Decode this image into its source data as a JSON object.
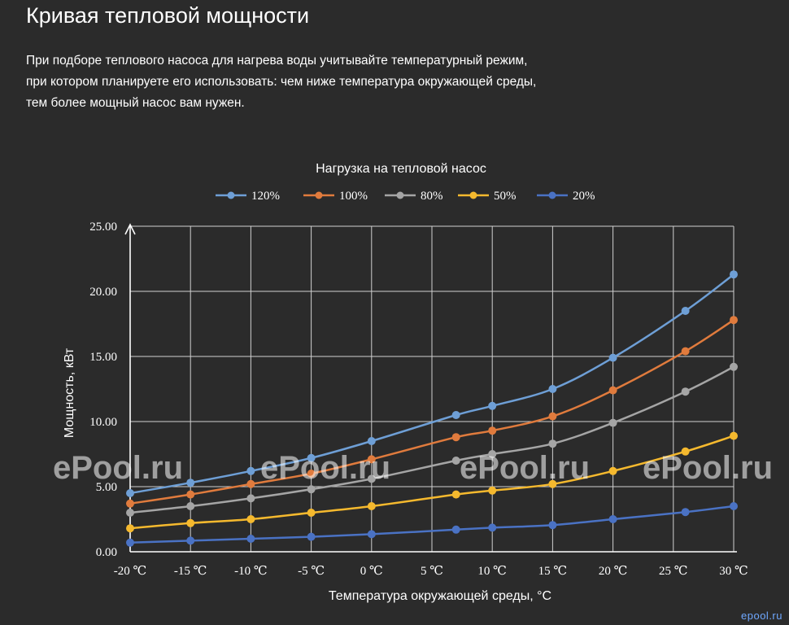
{
  "page": {
    "title": "Кривая тепловой мощности",
    "description": [
      "При подборе теплового насоса для нагрева воды учитывайте температурный режим,",
      "при котором планируете его использовать: чем ниже температура окружающей среды,",
      "тем более мощный насос вам нужен."
    ],
    "corner_mark": "epool.ru"
  },
  "watermark": {
    "text": "ePool.ru",
    "repeat": 4
  },
  "chart_data": {
    "type": "line",
    "title": "Нагрузка на тепловой насос",
    "xlabel": "Температура окружающей среды, °С",
    "ylabel": "Мощность, кВт",
    "x": [
      -20,
      -15,
      -10,
      -5,
      0,
      5,
      10,
      15,
      20,
      25,
      30
    ],
    "xtick_labels": [
      "-20 ℃",
      "-15 ℃",
      "-10 ℃",
      "-5 ℃",
      "0 ℃",
      "5 ℃",
      "10 ℃",
      "15 ℃",
      "20 ℃",
      "25 ℃",
      "30 ℃"
    ],
    "ylim": [
      0,
      25
    ],
    "ytick_labels": [
      "0.00",
      "5.00",
      "10.00",
      "15.00",
      "20.00",
      "25.00"
    ],
    "yticks": [
      0,
      5,
      10,
      15,
      20,
      25
    ],
    "grid": true,
    "legend_position": "top",
    "series": [
      {
        "name": "120%",
        "color": "#6e9fd6",
        "x": [
          -20,
          -15,
          -10,
          -5,
          0,
          7,
          10,
          15,
          20,
          26,
          30
        ],
        "y": [
          4.5,
          5.3,
          6.2,
          7.2,
          8.5,
          10.5,
          11.2,
          12.5,
          14.9,
          18.5,
          21.3
        ]
      },
      {
        "name": "100%",
        "color": "#e07b3d",
        "x": [
          -20,
          -15,
          -10,
          -5,
          0,
          7,
          10,
          15,
          20,
          26,
          30
        ],
        "y": [
          3.7,
          4.4,
          5.2,
          6.0,
          7.1,
          8.8,
          9.3,
          10.4,
          12.4,
          15.4,
          17.8
        ]
      },
      {
        "name": "80%",
        "color": "#a5a5a5",
        "x": [
          -20,
          -15,
          -10,
          -5,
          0,
          7,
          10,
          15,
          20,
          26,
          30
        ],
        "y": [
          3.0,
          3.5,
          4.1,
          4.8,
          5.6,
          7.0,
          7.5,
          8.3,
          9.9,
          12.3,
          14.2
        ]
      },
      {
        "name": "50%",
        "color": "#f5b92e",
        "x": [
          -20,
          -15,
          -10,
          -5,
          0,
          7,
          10,
          15,
          20,
          26,
          30
        ],
        "y": [
          1.8,
          2.2,
          2.5,
          3.0,
          3.5,
          4.4,
          4.7,
          5.2,
          6.2,
          7.7,
          8.9
        ]
      },
      {
        "name": "20%",
        "color": "#4a72c4",
        "x": [
          -20,
          -15,
          -10,
          -5,
          0,
          7,
          10,
          15,
          20,
          26,
          30
        ],
        "y": [
          0.7,
          0.85,
          1.0,
          1.15,
          1.35,
          1.7,
          1.85,
          2.05,
          2.5,
          3.05,
          3.5
        ]
      }
    ]
  }
}
